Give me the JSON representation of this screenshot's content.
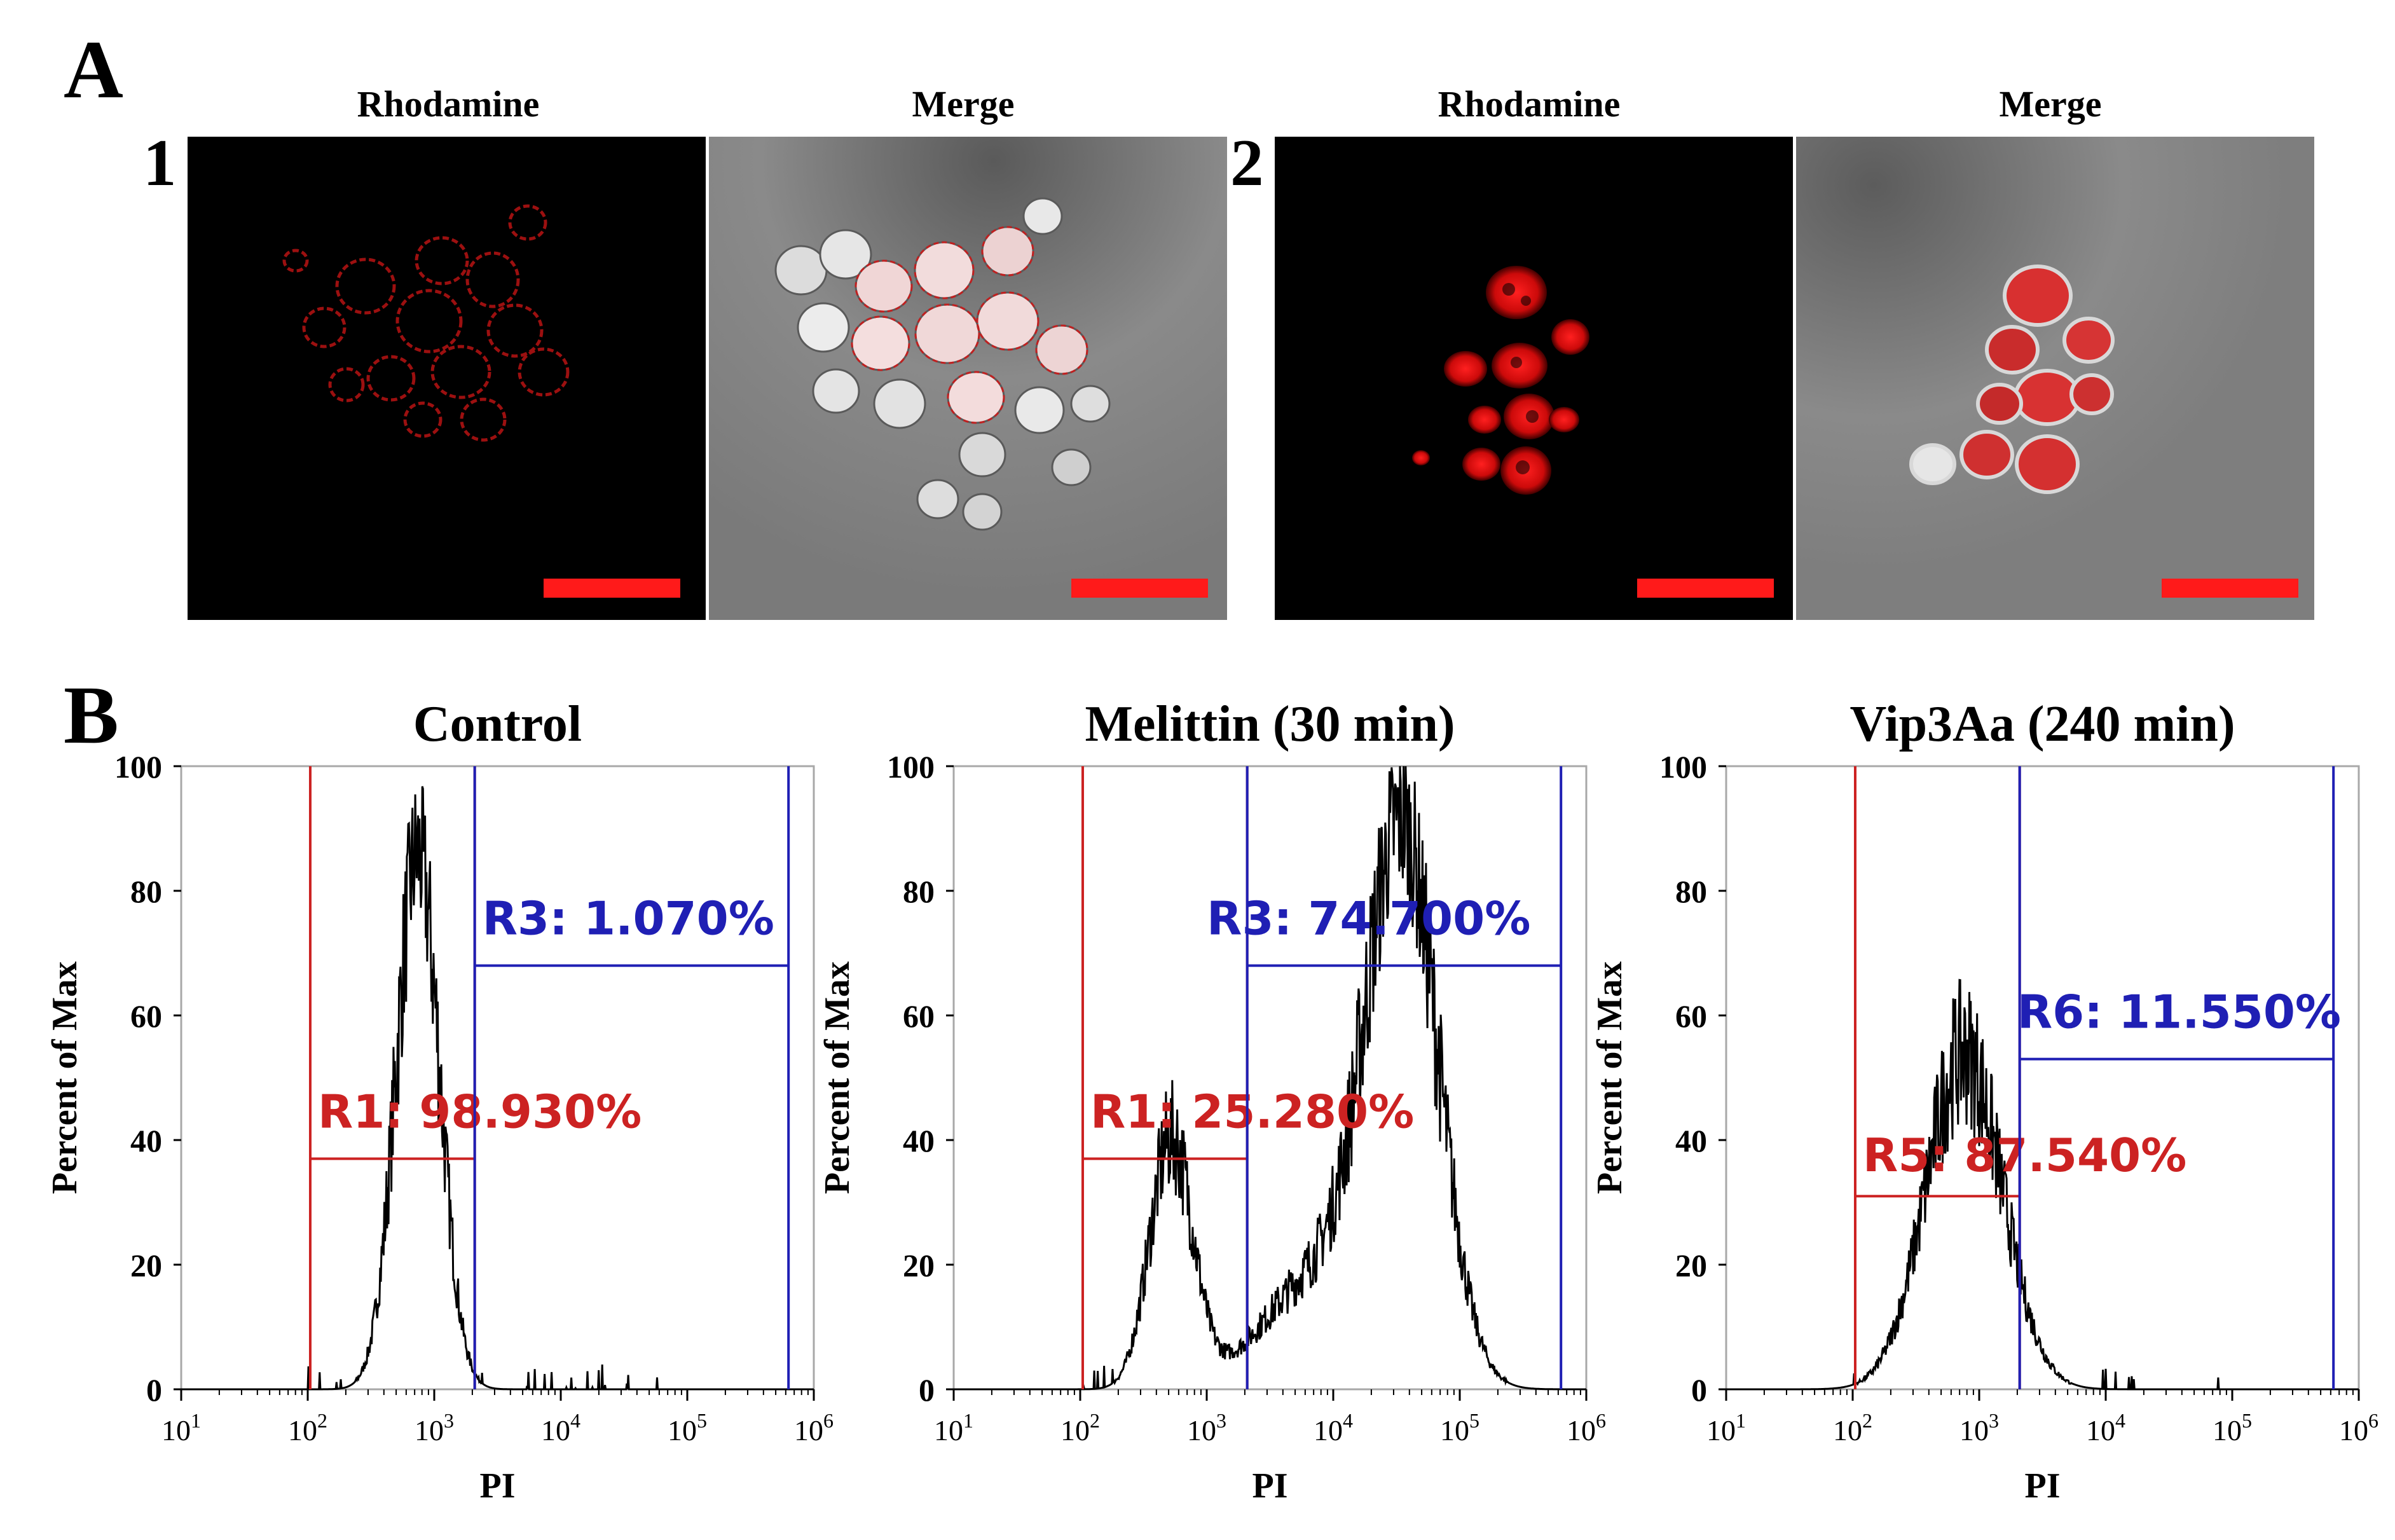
{
  "panel_A": {
    "label": "A",
    "sets": [
      {
        "number": "1",
        "images": [
          {
            "title": "Rhodamine",
            "description": "red fluorescent cell-membrane rings on black background"
          },
          {
            "title": "Merge",
            "description": "brightfield cluster of cells with red membrane outlines"
          }
        ]
      },
      {
        "number": "2",
        "images": [
          {
            "title": "Rhodamine",
            "description": "red fluorescent cell interiors on black background"
          },
          {
            "title": "Merge",
            "description": "brightfield cluster of cells filled with red"
          }
        ]
      }
    ],
    "scale_bar_color": "#ff1a1a"
  },
  "panel_B": {
    "label": "B"
  },
  "colors": {
    "red_gate": "#cc2222",
    "blue_gate": "#1f1fb4",
    "histogram": "#000000"
  },
  "chart_data": [
    {
      "type": "histogram",
      "title": "Control",
      "xlabel": "PI",
      "ylabel": "Percent of Max",
      "x_scale": "log",
      "xlim_log10": [
        1,
        6
      ],
      "ylim": [
        0,
        100
      ],
      "x_ticks": [
        {
          "base": "10",
          "exp": "1"
        },
        {
          "base": "10",
          "exp": "2"
        },
        {
          "base": "10",
          "exp": "3"
        },
        {
          "base": "10",
          "exp": "4"
        },
        {
          "base": "10",
          "exp": "5"
        },
        {
          "base": "10",
          "exp": "6"
        }
      ],
      "y_ticks": [
        "0",
        "20",
        "40",
        "60",
        "80",
        "100"
      ],
      "peaks": [
        {
          "center_log10": 2.87,
          "width": 0.17,
          "height": 86
        }
      ],
      "gates": [
        {
          "name": "R1",
          "color": "red",
          "x_start_log10": 2.02,
          "x_end_log10": 3.32,
          "level": 37,
          "label": "R1: 98.930%",
          "label_x_log10": 2.08,
          "label_y": 42
        },
        {
          "name": "R3",
          "color": "blue",
          "x_start_log10": 3.32,
          "x_end_log10": 5.8,
          "level": 68,
          "label": "R3: 1.070%",
          "label_x_log10": 3.38,
          "label_y": 73
        }
      ]
    },
    {
      "type": "histogram",
      "title": "Melittin (30 min)",
      "xlabel": "PI",
      "ylabel": "Percent of Max",
      "x_scale": "log",
      "xlim_log10": [
        1,
        6
      ],
      "ylim": [
        0,
        100
      ],
      "x_ticks": [
        {
          "base": "10",
          "exp": "1"
        },
        {
          "base": "10",
          "exp": "2"
        },
        {
          "base": "10",
          "exp": "3"
        },
        {
          "base": "10",
          "exp": "4"
        },
        {
          "base": "10",
          "exp": "5"
        },
        {
          "base": "10",
          "exp": "6"
        }
      ],
      "y_ticks": [
        "0",
        "20",
        "40",
        "60",
        "80",
        "100"
      ],
      "peaks": [
        {
          "center_log10": 2.72,
          "width": 0.17,
          "height": 40
        },
        {
          "center_log10": 4.55,
          "width": 0.28,
          "height": 85
        },
        {
          "center_log10": 3.9,
          "width": 0.45,
          "height": 18
        }
      ],
      "gates": [
        {
          "name": "R1",
          "color": "red",
          "x_start_log10": 2.02,
          "x_end_log10": 3.32,
          "level": 37,
          "label": "R1: 25.280%",
          "label_x_log10": 2.08,
          "label_y": 42
        },
        {
          "name": "R3",
          "color": "blue",
          "x_start_log10": 3.32,
          "x_end_log10": 5.8,
          "level": 68,
          "label": "R3: 74.700%",
          "label_x_log10": 3.0,
          "label_y": 73
        }
      ]
    },
    {
      "type": "histogram",
      "title": "Vip3Aa (240 min)",
      "xlabel": "PI",
      "ylabel": "Percent of Max",
      "x_scale": "log",
      "xlim_log10": [
        1,
        6
      ],
      "ylim": [
        0,
        100
      ],
      "x_ticks": [
        {
          "base": "10",
          "exp": "1"
        },
        {
          "base": "10",
          "exp": "2"
        },
        {
          "base": "10",
          "exp": "3"
        },
        {
          "base": "10",
          "exp": "4"
        },
        {
          "base": "10",
          "exp": "5"
        },
        {
          "base": "10",
          "exp": "6"
        }
      ],
      "y_ticks": [
        "0",
        "20",
        "40",
        "60",
        "80",
        "100"
      ],
      "peaks": [
        {
          "center_log10": 2.88,
          "width": 0.3,
          "height": 54
        }
      ],
      "gates": [
        {
          "name": "R5",
          "color": "red",
          "x_start_log10": 2.02,
          "x_end_log10": 3.32,
          "level": 31,
          "label": "R5: 87.540%",
          "label_x_log10": 2.08,
          "label_y": 35
        },
        {
          "name": "R6",
          "color": "blue",
          "x_start_log10": 3.32,
          "x_end_log10": 5.8,
          "level": 53,
          "label": "R6: 11.550%",
          "label_x_log10": 3.3,
          "label_y": 58
        }
      ]
    }
  ]
}
